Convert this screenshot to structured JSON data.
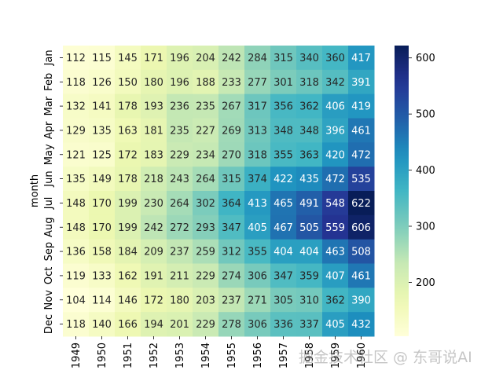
{
  "chart_data": {
    "type": "heatmap",
    "ylabel": "month",
    "xlabel": "",
    "x_categories": [
      "1949",
      "1950",
      "1951",
      "1952",
      "1953",
      "1954",
      "1955",
      "1956",
      "1957",
      "1958",
      "1959",
      "1960"
    ],
    "y_categories": [
      "Jan",
      "Feb",
      "Mar",
      "Apr",
      "May",
      "Jun",
      "Jul",
      "Aug",
      "Sep",
      "Oct",
      "Nov",
      "Dec"
    ],
    "values": [
      [
        112,
        115,
        145,
        171,
        196,
        204,
        242,
        284,
        315,
        340,
        360,
        417
      ],
      [
        118,
        126,
        150,
        180,
        196,
        188,
        233,
        277,
        301,
        318,
        342,
        391
      ],
      [
        132,
        141,
        178,
        193,
        236,
        235,
        267,
        317,
        356,
        362,
        406,
        419
      ],
      [
        129,
        135,
        163,
        181,
        235,
        227,
        269,
        313,
        348,
        348,
        396,
        461
      ],
      [
        121,
        125,
        172,
        183,
        229,
        234,
        270,
        318,
        355,
        363,
        420,
        472
      ],
      [
        135,
        149,
        178,
        218,
        243,
        264,
        315,
        374,
        422,
        435,
        472,
        535
      ],
      [
        148,
        170,
        199,
        230,
        264,
        302,
        364,
        413,
        465,
        491,
        548,
        622
      ],
      [
        148,
        170,
        199,
        242,
        272,
        293,
        347,
        405,
        467,
        505,
        559,
        606
      ],
      [
        136,
        158,
        184,
        209,
        237,
        259,
        312,
        355,
        404,
        404,
        463,
        508
      ],
      [
        119,
        133,
        162,
        191,
        211,
        229,
        274,
        306,
        347,
        359,
        407,
        461
      ],
      [
        104,
        114,
        146,
        172,
        180,
        203,
        237,
        271,
        305,
        310,
        362,
        390
      ],
      [
        118,
        140,
        166,
        194,
        201,
        229,
        278,
        306,
        336,
        337,
        405,
        432
      ]
    ],
    "colormap": "YlGnBu",
    "vmin": 104,
    "vmax": 622,
    "colorbar_ticks": [
      200,
      300,
      400,
      500,
      600
    ],
    "annotate": true
  },
  "watermark": "掘金技术社区 @ 东哥说AI"
}
